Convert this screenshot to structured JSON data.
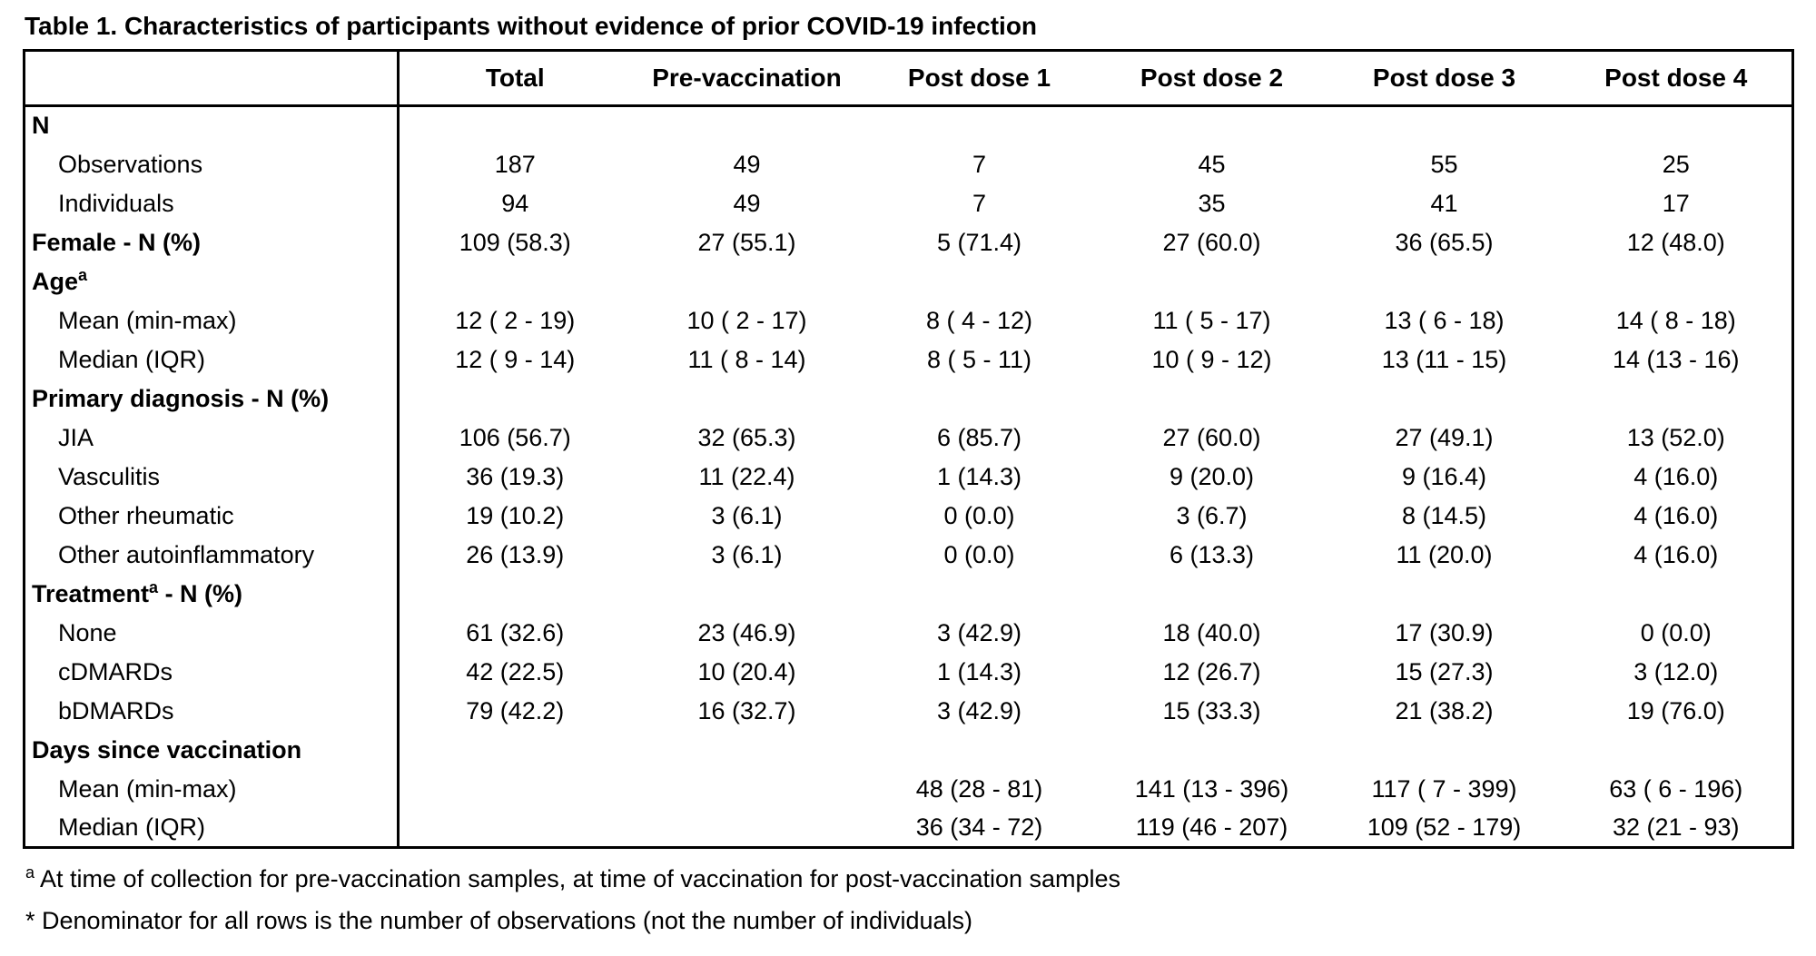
{
  "title": "Table 1. Characteristics of participants without evidence of prior COVID-19 infection",
  "table": {
    "columns": [
      "",
      "Total",
      "Pre-vaccination",
      "Post dose 1",
      "Post dose 2",
      "Post dose 3",
      "Post dose 4"
    ],
    "rows": [
      {
        "label": "N",
        "sup": "",
        "suffix": "",
        "style": "section",
        "values": [
          "",
          "",
          "",
          "",
          "",
          ""
        ]
      },
      {
        "label": "Observations",
        "sup": "",
        "suffix": "",
        "style": "sub",
        "values": [
          "187",
          "49",
          "7",
          "45",
          "55",
          "25"
        ]
      },
      {
        "label": "Individuals",
        "sup": "",
        "suffix": "",
        "style": "sub",
        "values": [
          "94",
          "49",
          "7",
          "35",
          "41",
          "17"
        ]
      },
      {
        "label": "Female - N (%)",
        "sup": "",
        "suffix": "",
        "style": "section",
        "values": [
          "109 (58.3)",
          "27 (55.1)",
          "5 (71.4)",
          "27 (60.0)",
          "36 (65.5)",
          "12 (48.0)"
        ]
      },
      {
        "label": "Age",
        "sup": "a",
        "suffix": "",
        "style": "section",
        "values": [
          "",
          "",
          "",
          "",
          "",
          ""
        ]
      },
      {
        "label": "Mean (min-max)",
        "sup": "",
        "suffix": "",
        "style": "sub",
        "values": [
          "12 ( 2 - 19)",
          "10 ( 2 - 17)",
          "8 ( 4 - 12)",
          "11 ( 5 - 17)",
          "13 ( 6 - 18)",
          "14 ( 8 - 18)"
        ]
      },
      {
        "label": "Median (IQR)",
        "sup": "",
        "suffix": "",
        "style": "sub",
        "values": [
          "12 ( 9 - 14)",
          "11 ( 8 - 14)",
          "8 ( 5 - 11)",
          "10 ( 9 - 12)",
          "13 (11 - 15)",
          "14 (13 - 16)"
        ]
      },
      {
        "label": "Primary diagnosis - N (%)",
        "sup": "",
        "suffix": "",
        "style": "section",
        "values": [
          "",
          "",
          "",
          "",
          "",
          ""
        ]
      },
      {
        "label": "JIA",
        "sup": "",
        "suffix": "",
        "style": "sub",
        "values": [
          "106 (56.7)",
          "32 (65.3)",
          "6 (85.7)",
          "27 (60.0)",
          "27 (49.1)",
          "13 (52.0)"
        ]
      },
      {
        "label": "Vasculitis",
        "sup": "",
        "suffix": "",
        "style": "sub",
        "values": [
          "36 (19.3)",
          "11 (22.4)",
          "1 (14.3)",
          "9 (20.0)",
          "9 (16.4)",
          "4 (16.0)"
        ]
      },
      {
        "label": "Other rheumatic",
        "sup": "",
        "suffix": "",
        "style": "sub",
        "values": [
          "19 (10.2)",
          "3 (6.1)",
          "0 (0.0)",
          "3 (6.7)",
          "8 (14.5)",
          "4 (16.0)"
        ]
      },
      {
        "label": "Other autoinflammatory",
        "sup": "",
        "suffix": "",
        "style": "sub",
        "values": [
          "26 (13.9)",
          "3 (6.1)",
          "0 (0.0)",
          "6 (13.3)",
          "11 (20.0)",
          "4 (16.0)"
        ]
      },
      {
        "label": "Treatment",
        "sup": "a",
        "suffix": " - N (%)",
        "style": "section",
        "values": [
          "",
          "",
          "",
          "",
          "",
          ""
        ]
      },
      {
        "label": "None",
        "sup": "",
        "suffix": "",
        "style": "sub",
        "values": [
          "61 (32.6)",
          "23 (46.9)",
          "3 (42.9)",
          "18 (40.0)",
          "17 (30.9)",
          "0 (0.0)"
        ]
      },
      {
        "label": "cDMARDs",
        "sup": "",
        "suffix": "",
        "style": "sub",
        "values": [
          "42 (22.5)",
          "10 (20.4)",
          "1 (14.3)",
          "12 (26.7)",
          "15 (27.3)",
          "3 (12.0)"
        ]
      },
      {
        "label": "bDMARDs",
        "sup": "",
        "suffix": "",
        "style": "sub",
        "values": [
          "79 (42.2)",
          "16 (32.7)",
          "3 (42.9)",
          "15 (33.3)",
          "21 (38.2)",
          "19 (76.0)"
        ]
      },
      {
        "label": "Days since vaccination",
        "sup": "",
        "suffix": "",
        "style": "section",
        "values": [
          "",
          "",
          "",
          "",
          "",
          ""
        ]
      },
      {
        "label": "Mean (min-max)",
        "sup": "",
        "suffix": "",
        "style": "sub",
        "values": [
          "",
          "",
          "48 (28 - 81)",
          "141 (13 - 396)",
          "117 ( 7 - 399)",
          "63 ( 6 - 196)"
        ]
      },
      {
        "label": "Median (IQR)",
        "sup": "",
        "suffix": "",
        "style": "sub",
        "values": [
          "",
          "",
          "36 (34 - 72)",
          "119 (46 - 207)",
          "109 (52 - 179)",
          "32 (21 - 93)"
        ]
      }
    ]
  },
  "footnotes": [
    {
      "marker": "a",
      "text": "At time of collection for pre-vaccination samples, at time of vaccination for post-vaccination samples"
    },
    {
      "marker": "*",
      "text": "Denominator for all rows is the number of observations (not the number of individuals)"
    }
  ]
}
